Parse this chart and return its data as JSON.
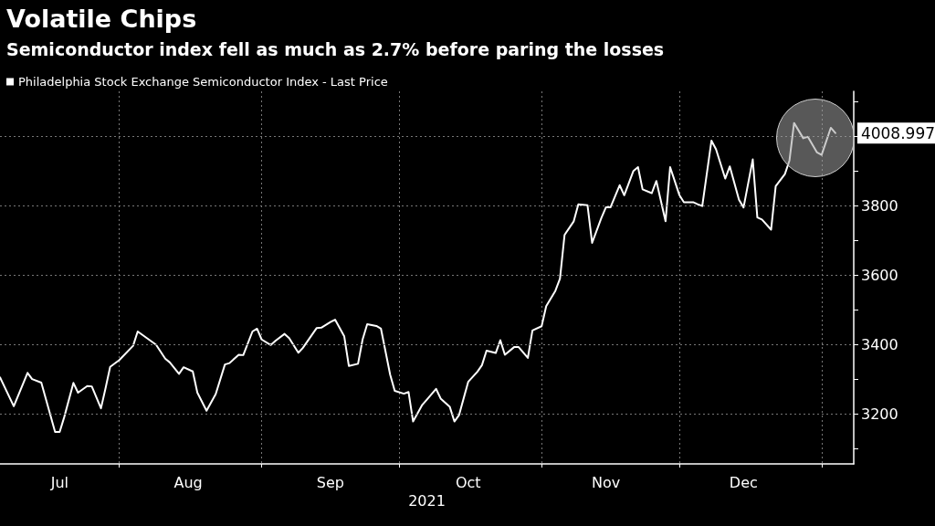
{
  "chart_data": {
    "type": "line",
    "title": "Volatile Chips",
    "subtitle": "Semiconductor index fell as much as 2.7% before paring the losses",
    "xlabel": "2021",
    "x": [
      "2021-07-06",
      "2021-07-09",
      "2021-07-12",
      "2021-07-13",
      "2021-07-15",
      "2021-07-18",
      "2021-07-19",
      "2021-07-20",
      "2021-07-22",
      "2021-07-23",
      "2021-07-25",
      "2021-07-26",
      "2021-07-28",
      "2021-07-29",
      "2021-07-30",
      "2021-08-01",
      "2021-08-04",
      "2021-08-05",
      "2021-08-09",
      "2021-08-11",
      "2021-08-12",
      "2021-08-14",
      "2021-08-15",
      "2021-08-17",
      "2021-08-18",
      "2021-08-20",
      "2021-08-22",
      "2021-08-24",
      "2021-08-25",
      "2021-08-27",
      "2021-08-28",
      "2021-08-30",
      "2021-08-31",
      "2021-09-01",
      "2021-09-03",
      "2021-09-04",
      "2021-09-06",
      "2021-09-07",
      "2021-09-09",
      "2021-09-10",
      "2021-09-13",
      "2021-09-14",
      "2021-09-16",
      "2021-09-17",
      "2021-09-19",
      "2021-09-20",
      "2021-09-22",
      "2021-09-23",
      "2021-09-24",
      "2021-09-26",
      "2021-09-27",
      "2021-09-29",
      "2021-09-30",
      "2021-10-02",
      "2021-10-03",
      "2021-10-04",
      "2021-10-06",
      "2021-10-07",
      "2021-10-09",
      "2021-10-10",
      "2021-10-12",
      "2021-10-13",
      "2021-10-14",
      "2021-10-16",
      "2021-10-18",
      "2021-10-19",
      "2021-10-20",
      "2021-10-22",
      "2021-10-23",
      "2021-10-24",
      "2021-10-26",
      "2021-10-27",
      "2021-10-29",
      "2021-10-30",
      "2021-11-01",
      "2021-11-02",
      "2021-11-04",
      "2021-11-05",
      "2021-11-06",
      "2021-11-08",
      "2021-11-09",
      "2021-11-11",
      "2021-11-12",
      "2021-11-14",
      "2021-11-15",
      "2021-11-16",
      "2021-11-18",
      "2021-11-19",
      "2021-11-21",
      "2021-11-22",
      "2021-11-23",
      "2021-11-25",
      "2021-11-26",
      "2021-11-28",
      "2021-11-29",
      "2021-12-01",
      "2021-12-02",
      "2021-12-04",
      "2021-12-05",
      "2021-12-06",
      "2021-12-08",
      "2021-12-09",
      "2021-12-11",
      "2021-12-12",
      "2021-12-14",
      "2021-12-15",
      "2021-12-17",
      "2021-12-18",
      "2021-12-19",
      "2021-12-21",
      "2021-12-22",
      "2021-12-24",
      "2021-12-25",
      "2021-12-26",
      "2021-12-28",
      "2021-12-29",
      "2021-12-31",
      "2022-01-01",
      "2022-01-03",
      "2022-01-04"
    ],
    "series": [
      {
        "name": "Philadelphia Stock Exchange Semiconductor Index - Last Price",
        "color": "#ffffff",
        "values": [
          3306,
          3223,
          3319,
          3301,
          3291,
          3149,
          3149,
          3192,
          3290,
          3262,
          3281,
          3280,
          3217,
          3275,
          3336,
          3356,
          3397,
          3438,
          3400,
          3360,
          3349,
          3316,
          3335,
          3323,
          3262,
          3210,
          3258,
          3343,
          3347,
          3371,
          3370,
          3438,
          3446,
          3415,
          3399,
          3411,
          3431,
          3419,
          3377,
          3391,
          3448,
          3449,
          3465,
          3472,
          3424,
          3339,
          3345,
          3415,
          3459,
          3454,
          3446,
          3314,
          3267,
          3259,
          3264,
          3179,
          3227,
          3242,
          3273,
          3245,
          3221,
          3179,
          3197,
          3293,
          3322,
          3341,
          3383,
          3376,
          3413,
          3371,
          3393,
          3393,
          3362,
          3441,
          3453,
          3511,
          3555,
          3590,
          3716,
          3755,
          3804,
          3801,
          3693,
          3764,
          3795,
          3795,
          3859,
          3830,
          3900,
          3911,
          3847,
          3836,
          3871,
          3755,
          3911,
          3831,
          3810,
          3810,
          3804,
          3799,
          3987,
          3962,
          3878,
          3913,
          3817,
          3795,
          3933,
          3766,
          3760,
          3731,
          3856,
          3891,
          3930,
          4038,
          3994,
          3998,
          3953,
          3946,
          4024,
          4008.997
        ],
        "value_labels": [
          null,
          null,
          null,
          null,
          null,
          null,
          null,
          null,
          null,
          null,
          null,
          null,
          null,
          null,
          null,
          null,
          null,
          null,
          null,
          null,
          null,
          null,
          null,
          null,
          null,
          null,
          null,
          null,
          null,
          null,
          null,
          null,
          null,
          null,
          null,
          null,
          null,
          null,
          null,
          null,
          null,
          null,
          null,
          null,
          null,
          null,
          null,
          null,
          null,
          null,
          null,
          null,
          null,
          null,
          null,
          null,
          null,
          null,
          null,
          null,
          null,
          null,
          null,
          null,
          null,
          null,
          null,
          null,
          null,
          null,
          null,
          null,
          null,
          null,
          null,
          null,
          null,
          null,
          null,
          null,
          null,
          null,
          null,
          null,
          null,
          null,
          null,
          null,
          null,
          null,
          null,
          null,
          null,
          null,
          null,
          null,
          null,
          null,
          null,
          null,
          null,
          null,
          null,
          null,
          null,
          null,
          null,
          null,
          null,
          null,
          null,
          null,
          null,
          null,
          null,
          null,
          null,
          null,
          null,
          "4008.997"
        ]
      }
    ],
    "xlim": [
      "2021-07-06",
      "2022-01-08"
    ],
    "xticks": [
      {
        "value": "2021-07-19",
        "label": "Jul"
      },
      {
        "value": "2021-08-01",
        "label": null
      },
      {
        "value": "2021-08-16",
        "label": "Aug"
      },
      {
        "value": "2021-09-01",
        "label": null
      },
      {
        "value": "2021-09-16",
        "label": "Sep"
      },
      {
        "value": "2021-10-01",
        "label": null
      },
      {
        "value": "2021-10-16",
        "label": "Oct"
      },
      {
        "value": "2021-11-01",
        "label": null
      },
      {
        "value": "2021-11-15",
        "label": "Nov"
      },
      {
        "value": "2021-12-01",
        "label": null
      },
      {
        "value": "2021-12-15",
        "label": "Dec"
      },
      {
        "value": "2022-01-01",
        "label": null
      }
    ],
    "ylim": [
      3057,
      4129
    ],
    "yticks": [
      {
        "value": 3100,
        "label": null
      },
      3200,
      {
        "value": 3300,
        "label": null
      },
      3400,
      {
        "value": 3500,
        "label": null
      },
      3600,
      {
        "value": 3700,
        "label": null
      },
      3800,
      {
        "value": 3900,
        "label": null
      },
      {
        "value": 4000,
        "label": null
      },
      {
        "value": 4100,
        "label": null
      }
    ],
    "grid": true,
    "legend": "top left",
    "marker": "none",
    "line_style": "solid"
  }
}
